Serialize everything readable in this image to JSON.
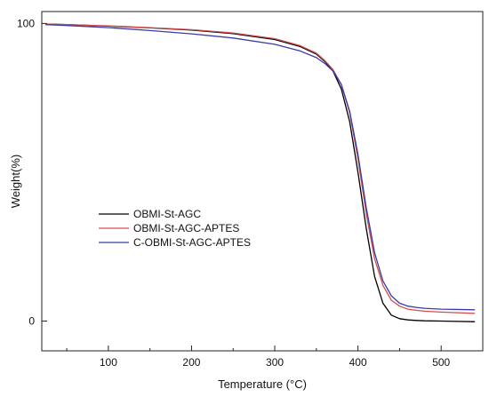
{
  "chart_data": {
    "type": "line",
    "title": "",
    "xlabel": "Temperature (°C)",
    "ylabel": "Weight(%)",
    "xlim": [
      20,
      550
    ],
    "ylim": [
      -10,
      104
    ],
    "x_ticks": [
      100,
      200,
      300,
      400,
      500
    ],
    "x_minor_ticks": [
      50,
      150,
      250,
      350,
      450
    ],
    "y_ticks": [
      0,
      100
    ],
    "grid": false,
    "legend_position": "center-left",
    "series": [
      {
        "name": "OBMI-St-AGC",
        "color": "#000000",
        "x": [
          25,
          50,
          100,
          150,
          200,
          250,
          300,
          330,
          350,
          360,
          370,
          380,
          390,
          400,
          410,
          420,
          430,
          440,
          450,
          460,
          470,
          480,
          500,
          540
        ],
        "y": [
          99.8,
          99.6,
          99.1,
          98.5,
          97.8,
          96.6,
          94.6,
          92.3,
          89.7,
          87.3,
          84.0,
          78.0,
          67.0,
          50.0,
          31.0,
          15.0,
          6.0,
          2.0,
          0.8,
          0.4,
          0.2,
          0.1,
          0.0,
          -0.2
        ]
      },
      {
        "name": "OBMI-St-AGC-APTES",
        "color": "#d05050",
        "x": [
          25,
          50,
          100,
          150,
          200,
          250,
          300,
          330,
          350,
          360,
          370,
          380,
          390,
          400,
          410,
          420,
          430,
          440,
          450,
          460,
          470,
          480,
          500,
          540
        ],
        "y": [
          99.8,
          99.6,
          99.2,
          98.6,
          97.9,
          96.8,
          94.9,
          92.6,
          90.0,
          87.6,
          84.5,
          79.5,
          70.0,
          54.5,
          36.0,
          21.0,
          12.0,
          7.0,
          5.0,
          4.0,
          3.6,
          3.3,
          3.0,
          2.6
        ]
      },
      {
        "name": "C-OBMI-St-AGC-APTES",
        "color": "#3a3aa8",
        "x": [
          25,
          50,
          100,
          150,
          200,
          250,
          300,
          330,
          350,
          360,
          370,
          380,
          390,
          400,
          410,
          420,
          430,
          440,
          450,
          460,
          470,
          480,
          500,
          540
        ],
        "y": [
          99.6,
          99.3,
          98.6,
          97.6,
          96.5,
          95.1,
          93.0,
          90.8,
          88.5,
          86.6,
          84.0,
          79.5,
          70.5,
          56.0,
          38.0,
          23.0,
          13.5,
          8.5,
          6.0,
          5.0,
          4.6,
          4.3,
          4.0,
          3.8
        ]
      }
    ]
  }
}
